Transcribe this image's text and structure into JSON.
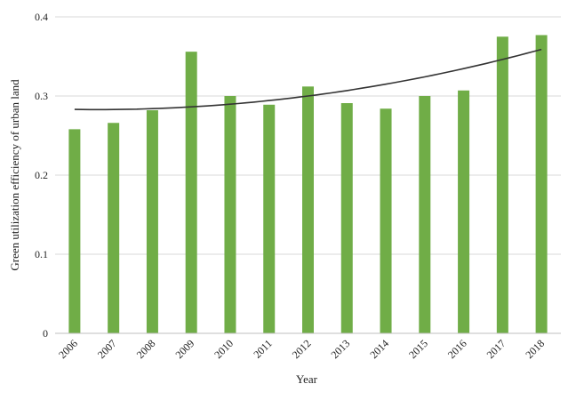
{
  "chart_data": {
    "type": "bar",
    "title": "",
    "xlabel": "Year",
    "ylabel": "Green utilization efficiency of urban land",
    "categories": [
      "2006",
      "2007",
      "2008",
      "2009",
      "2010",
      "2011",
      "2012",
      "2013",
      "2014",
      "2015",
      "2016",
      "2017",
      "2018"
    ],
    "values": [
      0.258,
      0.266,
      0.282,
      0.356,
      0.3,
      0.289,
      0.312,
      0.291,
      0.284,
      0.3,
      0.307,
      0.375,
      0.377
    ],
    "ylim": [
      0,
      0.4
    ],
    "yticks": [
      "0",
      "0.1",
      "0.2",
      "0.3",
      "0.4"
    ],
    "ytick_values": [
      0,
      0.1,
      0.2,
      0.3,
      0.4
    ],
    "grid": true,
    "bar_color": "#70ad47",
    "trendline": {
      "type": "polynomial-2",
      "coefficients": [
        0.283,
        -0.00067,
        0.000583
      ],
      "color": "#333333"
    }
  }
}
